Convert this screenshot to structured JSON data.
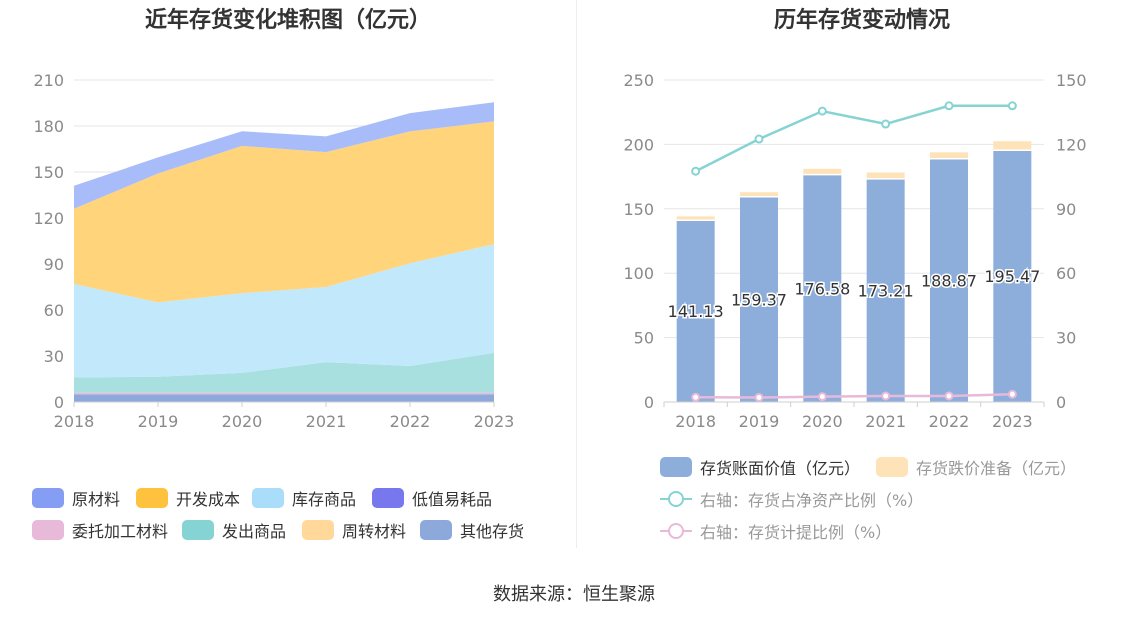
{
  "titles": {
    "left": "近年存货变化堆积图（亿元）",
    "right": "历年存货变动情况"
  },
  "source": "数据来源：恒生聚源",
  "chart_data": [
    {
      "type": "area",
      "stacked": true,
      "title": "近年存货变化堆积图（亿元）",
      "x": [
        "2018",
        "2019",
        "2020",
        "2021",
        "2022",
        "2023"
      ],
      "ylim": [
        0,
        210
      ],
      "yticks": [
        0,
        30,
        60,
        90,
        120,
        150,
        180,
        210
      ],
      "grid": true,
      "legend_position": "bottom",
      "series": [
        {
          "name": "其他存货",
          "color": "#8DA9DB",
          "values": [
            5,
            5,
            5,
            5,
            5,
            5
          ]
        },
        {
          "name": "委托加工材料",
          "color": "#E8B9D8",
          "values": [
            1,
            1,
            1,
            1,
            1,
            1
          ]
        },
        {
          "name": "发出商品",
          "color": "#A8E0E0",
          "values": [
            10,
            10.5,
            13,
            20,
            17.5,
            26
          ]
        },
        {
          "name": "库存商品",
          "color": "#C2E8FB",
          "values": [
            61,
            48.5,
            52,
            49,
            67,
            71
          ]
        },
        {
          "name": "低值易耗品",
          "color": "#7B7BEE",
          "values": [
            0,
            0,
            0,
            0,
            0,
            0
          ]
        },
        {
          "name": "周转材料",
          "color": "#FFDA8A",
          "values": [
            0,
            0,
            0,
            0,
            0,
            0
          ]
        },
        {
          "name": "开发成本",
          "color": "#FFD47A",
          "values": [
            49,
            84,
            96,
            88,
            86,
            80
          ]
        },
        {
          "name": "原材料",
          "color": "#A9BCFA",
          "values": [
            15,
            10.5,
            9.6,
            10.2,
            11.9,
            12.5
          ]
        }
      ],
      "legend_order": [
        "原材料",
        "开发成本",
        "库存商品",
        "低值易耗品",
        "委托加工材料",
        "发出商品",
        "周转材料",
        "其他存货"
      ],
      "legend_colors": {
        "原材料": "#859DF3",
        "开发成本": "#FFC23E",
        "库存商品": "#A9DDFA",
        "低值易耗品": "#7777EE",
        "委托加工材料": "#E8B9D8",
        "发出商品": "#86D3D3",
        "周转材料": "#FFD89A",
        "其他存货": "#8DA9DB"
      }
    },
    {
      "type": "bar",
      "stacked": true,
      "title": "历年存货变动情况",
      "categories": [
        "2018",
        "2019",
        "2020",
        "2021",
        "2022",
        "2023"
      ],
      "ylim": [
        0,
        250
      ],
      "yticks": [
        0,
        50,
        100,
        150,
        200,
        250
      ],
      "y2lim": [
        0,
        150
      ],
      "y2ticks": [
        0,
        30,
        60,
        90,
        120,
        150
      ],
      "grid": true,
      "legend_position": "bottom",
      "series": [
        {
          "name": "存货账面价值（亿元）",
          "color": "#8DAEDB",
          "values": [
            141.13,
            159.37,
            176.58,
            173.21,
            188.87,
            195.47
          ],
          "labels": [
            "141.13",
            "159.37",
            "176.58",
            "173.21",
            "188.87",
            "195.47"
          ]
        },
        {
          "name": "存货跌价准备（亿元）",
          "color": "#FFE3B8",
          "values": [
            3,
            3.5,
            4.5,
            5,
            5,
            7
          ]
        }
      ],
      "lines": [
        {
          "name": "右轴：存货占净资产比例（%）",
          "color": "#86D3D3",
          "axis": "right",
          "values": [
            107.5,
            122.5,
            135.5,
            129.5,
            138,
            138
          ]
        },
        {
          "name": "右轴：存货计提比例（%）",
          "color": "#E8B9D8",
          "axis": "right",
          "values": [
            2.2,
            2.1,
            2.5,
            2.8,
            2.8,
            3.6
          ]
        }
      ]
    }
  ]
}
